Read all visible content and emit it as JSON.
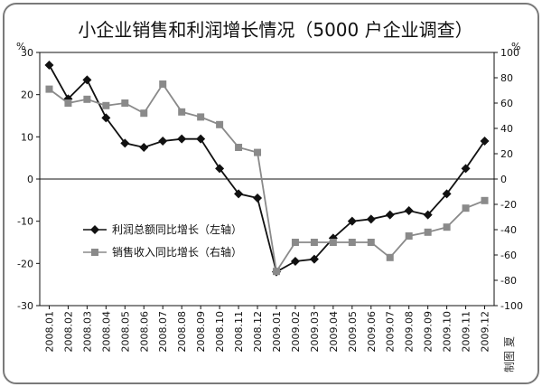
{
  "chart_data": {
    "type": "line",
    "title": "小企业销售和利润增长情况（5000 户企业调查）",
    "left_axis_unit": "%",
    "right_axis_unit": "%",
    "x": [
      "2008.01",
      "2008.02",
      "2008.03",
      "2008.04",
      "2008.05",
      "2008.06",
      "2008.07",
      "2008.08",
      "2008.09",
      "2008.10",
      "2008.11",
      "2008.12",
      "2009.01",
      "2009.02",
      "2009.03",
      "2009.04",
      "2009.05",
      "2009.06",
      "2009.07",
      "2009.08",
      "2009.09",
      "2009.10",
      "2009.11",
      "2009.12"
    ],
    "left_ylim": [
      -30,
      30
    ],
    "left_yticks": [
      30,
      20,
      10,
      0,
      -10,
      -20,
      -30
    ],
    "right_ylim": [
      -100,
      100
    ],
    "right_yticks": [
      100,
      80,
      60,
      40,
      20,
      0,
      -20,
      -40,
      -60,
      -80,
      -100
    ],
    "series": [
      {
        "name": "利润总额同比增长（左轴）",
        "axis": "left",
        "color": "#111111",
        "marker": "diamond",
        "values": [
          27,
          19,
          23.5,
          14.5,
          8.5,
          7.5,
          9,
          9.5,
          9.5,
          2.5,
          -3.5,
          -4.5,
          -22,
          -19.5,
          -19,
          -14,
          -10,
          -9.5,
          -8.5,
          -7.5,
          -8.5,
          -3.5,
          2.5,
          9
        ]
      },
      {
        "name": "销售收入同比增长（右轴）",
        "axis": "right",
        "color": "#8a8a8a",
        "marker": "square",
        "values": [
          71,
          60,
          63,
          58,
          60,
          52,
          75,
          53,
          49,
          43,
          25,
          21,
          -73,
          -50,
          -50,
          -50,
          -50,
          -50,
          -62,
          -45,
          -42,
          -38,
          -23,
          -17
        ]
      }
    ],
    "legend_position": "middle-left",
    "credit": "制图 夏"
  }
}
